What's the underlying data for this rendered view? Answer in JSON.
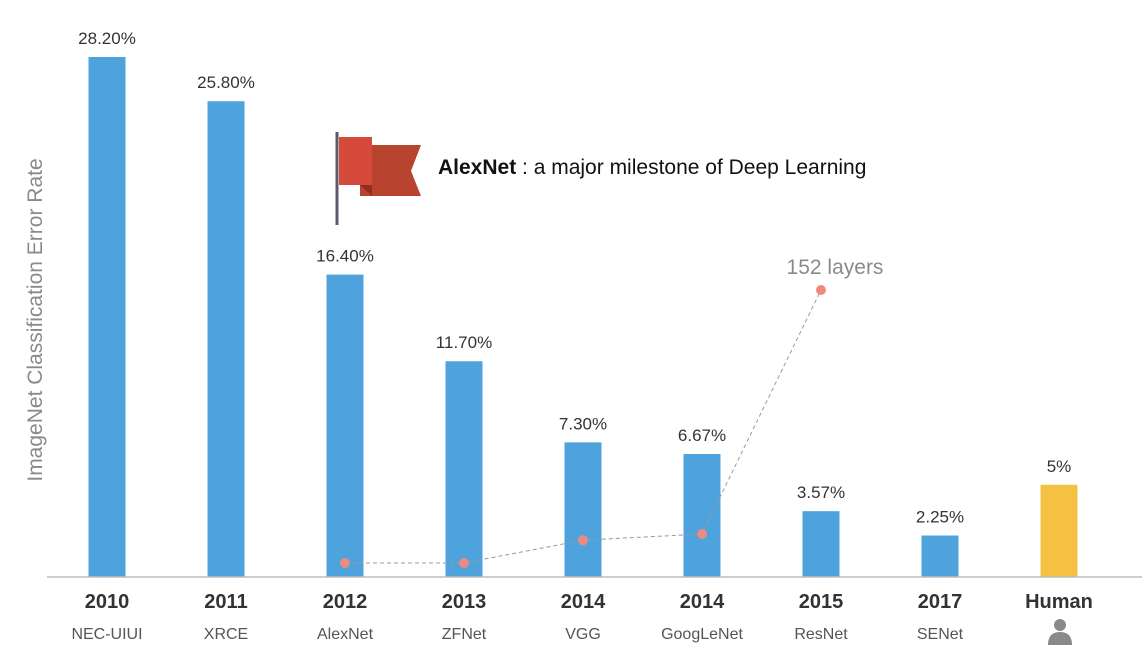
{
  "chart_data": {
    "type": "bar",
    "ylabel": "ImageNet Classification Error Rate",
    "ylim": [
      0,
      29.5
    ],
    "grid": false,
    "years": [
      "2010",
      "2011",
      "2012",
      "2013",
      "2014",
      "2014",
      "2015",
      "2017",
      "Human"
    ],
    "categories": [
      "NEC-UIUI",
      "XRCE",
      "AlexNet",
      "ZFNet",
      "VGG",
      "GoogLeNet",
      "ResNet",
      "SENet",
      ""
    ],
    "values": [
      28.2,
      25.8,
      16.4,
      11.7,
      7.3,
      6.67,
      3.57,
      2.25,
      5
    ],
    "value_labels": [
      "28.20%",
      "25.80%",
      "16.40%",
      "11.70%",
      "7.30%",
      "6.67%",
      "3.57%",
      "2.25%",
      "5%"
    ],
    "colors": {
      "bar": "#4fa3dd",
      "human_bar": "#f4c142",
      "layer_marker": "#ef8a80",
      "layer_line": "#999999",
      "flag": "#d64a3b"
    },
    "layers_series": {
      "categories": [
        "AlexNet",
        "ZFNet",
        "VGG",
        "GoogLeNet",
        "ResNet"
      ],
      "values": [
        8,
        8,
        19,
        22,
        152
      ],
      "annotation": "152 layers"
    },
    "annotation": {
      "bold": "AlexNet",
      "text": " : a major milestone of Deep Learning",
      "icon": "flag-icon"
    },
    "human_icon": "person-icon"
  }
}
